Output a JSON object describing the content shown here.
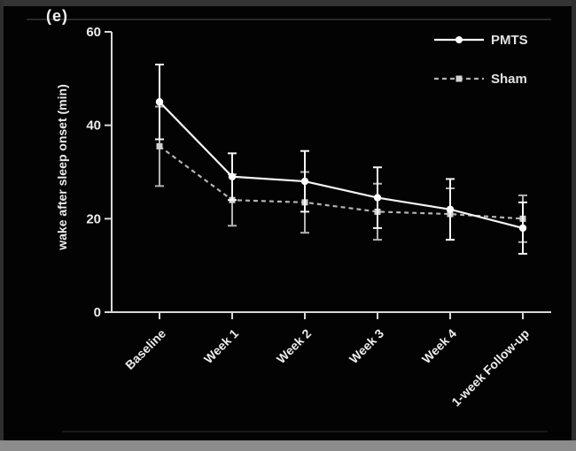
{
  "panel_label": "(e)",
  "colors": {
    "background": "#030303",
    "frame_border": "#343434",
    "frame_bottom": "#8c8c8c",
    "axis": "#d8d8d8",
    "text": "#ededed",
    "series_pmts": "#f5f5f5",
    "series_sham": "#b3b3b3",
    "marker_pmts": "#ffffff",
    "marker_sham": "#d2d2d2"
  },
  "legend": {
    "items": [
      {
        "label": "PMTS",
        "marker": "circle",
        "line": "solid"
      },
      {
        "label": "Sham",
        "marker": "square",
        "line": "dashed"
      }
    ]
  },
  "chart_data": {
    "type": "line",
    "title": "",
    "xlabel": "",
    "ylabel": "wake after sleep onset (min)",
    "ylim": [
      0,
      60
    ],
    "yticks": [
      0,
      20,
      40,
      60
    ],
    "categories": [
      "Baseline",
      "Week 1",
      "Week 2",
      "Week 3",
      "Week 4",
      "1-week Follow-up"
    ],
    "series": [
      {
        "name": "PMTS",
        "marker": "circle",
        "line_style": "solid",
        "values": [
          45,
          29,
          28,
          24.5,
          22,
          18
        ],
        "errors": [
          8,
          5,
          6.5,
          6.5,
          6.5,
          5.5
        ]
      },
      {
        "name": "Sham",
        "marker": "square",
        "line_style": "dashed",
        "values": [
          35.5,
          24,
          23.5,
          21.5,
          21,
          20
        ],
        "errors": [
          8.5,
          5.5,
          6.5,
          6,
          5.5,
          5
        ]
      }
    ],
    "legend_position": "top-right",
    "grid": false,
    "error_bars": true
  }
}
